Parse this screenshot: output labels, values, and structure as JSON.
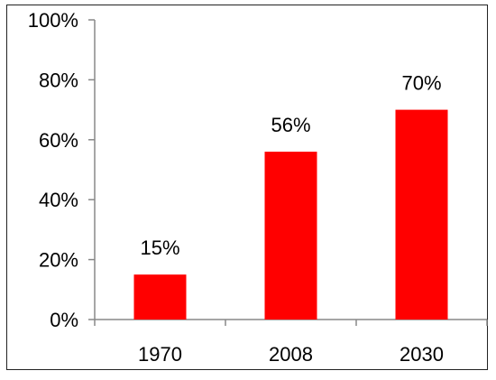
{
  "chart_data": {
    "type": "bar",
    "title": "",
    "xlabel": "",
    "ylabel": "",
    "categories": [
      "1970",
      "2008",
      "2030"
    ],
    "values": [
      15,
      56,
      70
    ],
    "data_labels": [
      "15%",
      "56%",
      "70%"
    ],
    "ylim": [
      0,
      100
    ],
    "y_ticks": [
      0,
      20,
      40,
      60,
      80,
      100
    ],
    "y_tick_labels": [
      "0%",
      "20%",
      "40%",
      "60%",
      "80%",
      "100%"
    ],
    "bar_color": "#ff0000",
    "grid": false,
    "legend": "none"
  }
}
